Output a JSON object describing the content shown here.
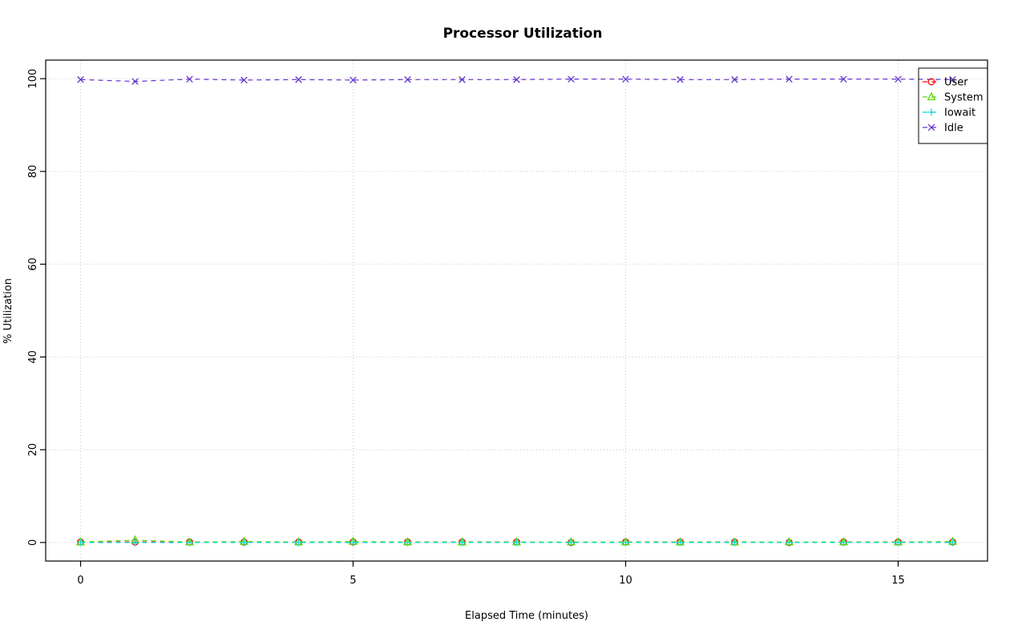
{
  "chart_data": {
    "type": "line",
    "title": "Processor Utilization",
    "xlabel": "Elapsed Time (minutes)",
    "ylabel": "% Utilization",
    "x": [
      0,
      1,
      2,
      3,
      4,
      5,
      6,
      7,
      8,
      9,
      10,
      11,
      12,
      13,
      14,
      15,
      16
    ],
    "xlim": [
      0,
      16
    ],
    "ylim": [
      0,
      100
    ],
    "xticks": [
      0,
      5,
      10,
      15
    ],
    "yticks": [
      0,
      20,
      40,
      60,
      80,
      100
    ],
    "grid": true,
    "line_style": "dashed",
    "legend_position": "topright",
    "series": [
      {
        "name": "User",
        "marker": "circle",
        "color": "#ff0000",
        "values": [
          0.1,
          0.1,
          0.1,
          0.1,
          0.1,
          0.1,
          0.1,
          0.1,
          0.1,
          0.0,
          0.1,
          0.1,
          0.1,
          0.0,
          0.1,
          0.1,
          0.1
        ]
      },
      {
        "name": "System",
        "marker": "triangle",
        "color": "#56d900",
        "values": [
          0.1,
          0.5,
          0.1,
          0.2,
          0.1,
          0.2,
          0.1,
          0.1,
          0.1,
          0.1,
          0.1,
          0.1,
          0.1,
          0.1,
          0.1,
          0.1,
          0.2
        ]
      },
      {
        "name": "Iowait",
        "marker": "plus",
        "color": "#00dde0",
        "values": [
          0.0,
          0.0,
          0.0,
          0.0,
          0.0,
          0.0,
          0.0,
          0.0,
          0.0,
          0.0,
          0.0,
          0.0,
          0.0,
          0.0,
          0.0,
          0.0,
          0.0
        ]
      },
      {
        "name": "Idle",
        "marker": "x",
        "color": "#6633cc",
        "values": [
          99.8,
          99.4,
          99.9,
          99.7,
          99.8,
          99.7,
          99.8,
          99.8,
          99.8,
          99.9,
          99.9,
          99.8,
          99.8,
          99.9,
          99.9,
          99.9,
          99.8
        ]
      }
    ]
  }
}
